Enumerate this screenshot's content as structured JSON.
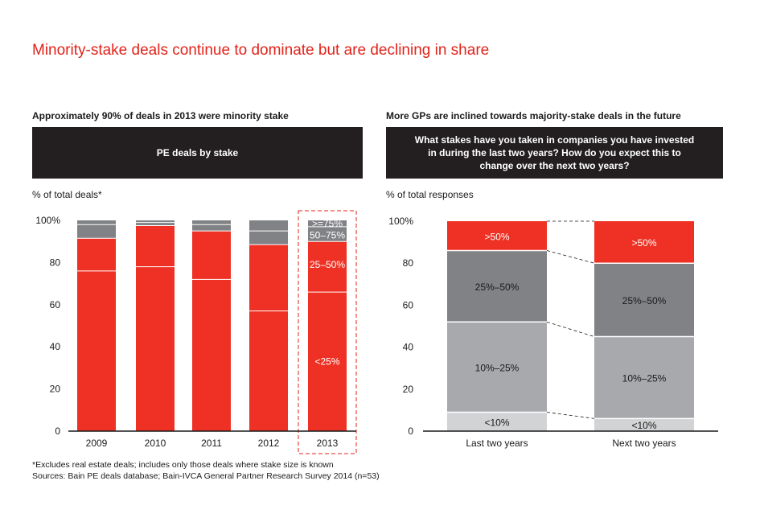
{
  "title": "Minority-stake deals continue to dominate but are declining in share",
  "left_panel": {
    "subtitle": "Approximately 90% of deals in 2013 were minority stake",
    "banner": "PE deals by stake",
    "unit_label": "% of total deals*"
  },
  "right_panel": {
    "subtitle": "More GPs are inclined towards majority-stake deals in the future",
    "banner": "What stakes have you taken in companies you have invested in during the last two years? How do you expect this to change over the next two years?",
    "unit_label": "% of total responses"
  },
  "footnotes": {
    "note": "*Excludes real estate deals; includes only those deals where stake size is known",
    "sources": "Sources: Bain PE deals database; Bain-IVCA General Partner Research Survey 2014 (n=53)"
  },
  "colors": {
    "red": "#ee3124",
    "dark_gray": "#808285",
    "mid_gray": "#a7a9ac",
    "light_gray": "#d1d3d4",
    "title_red": "#e2231a",
    "banner": "#231f20"
  },
  "chart_data": [
    {
      "type": "bar",
      "stacked": true,
      "categories": [
        "2009",
        "2010",
        "2011",
        "2012",
        "2013"
      ],
      "ylim": [
        0,
        100
      ],
      "yticks": [
        "0",
        "20",
        "40",
        "60",
        "80",
        "100%"
      ],
      "series": [
        {
          "name": "<25%",
          "values": [
            76,
            78,
            72,
            57,
            66
          ]
        },
        {
          "name": "25–50%",
          "values": [
            15.5,
            19.5,
            23,
            31.5,
            24
          ]
        },
        {
          "name": "50–75%",
          "values": [
            6.5,
            1.5,
            3,
            6.5,
            7
          ]
        },
        {
          "name": ">=75%",
          "values": [
            2,
            1,
            2,
            5,
            3
          ]
        }
      ],
      "highlight_category": "2013"
    },
    {
      "type": "bar",
      "stacked": true,
      "categories": [
        "Last two years",
        "Next two years"
      ],
      "ylim": [
        0,
        100
      ],
      "yticks": [
        "0",
        "20",
        "40",
        "60",
        "80",
        "100%"
      ],
      "series": [
        {
          "name": "<10%",
          "values": [
            9,
            6
          ]
        },
        {
          "name": "10%–25%",
          "values": [
            43,
            39
          ]
        },
        {
          "name": "25%–50%",
          "values": [
            34,
            35
          ]
        },
        {
          "name": ">50%",
          "values": [
            14,
            20
          ]
        }
      ]
    }
  ]
}
